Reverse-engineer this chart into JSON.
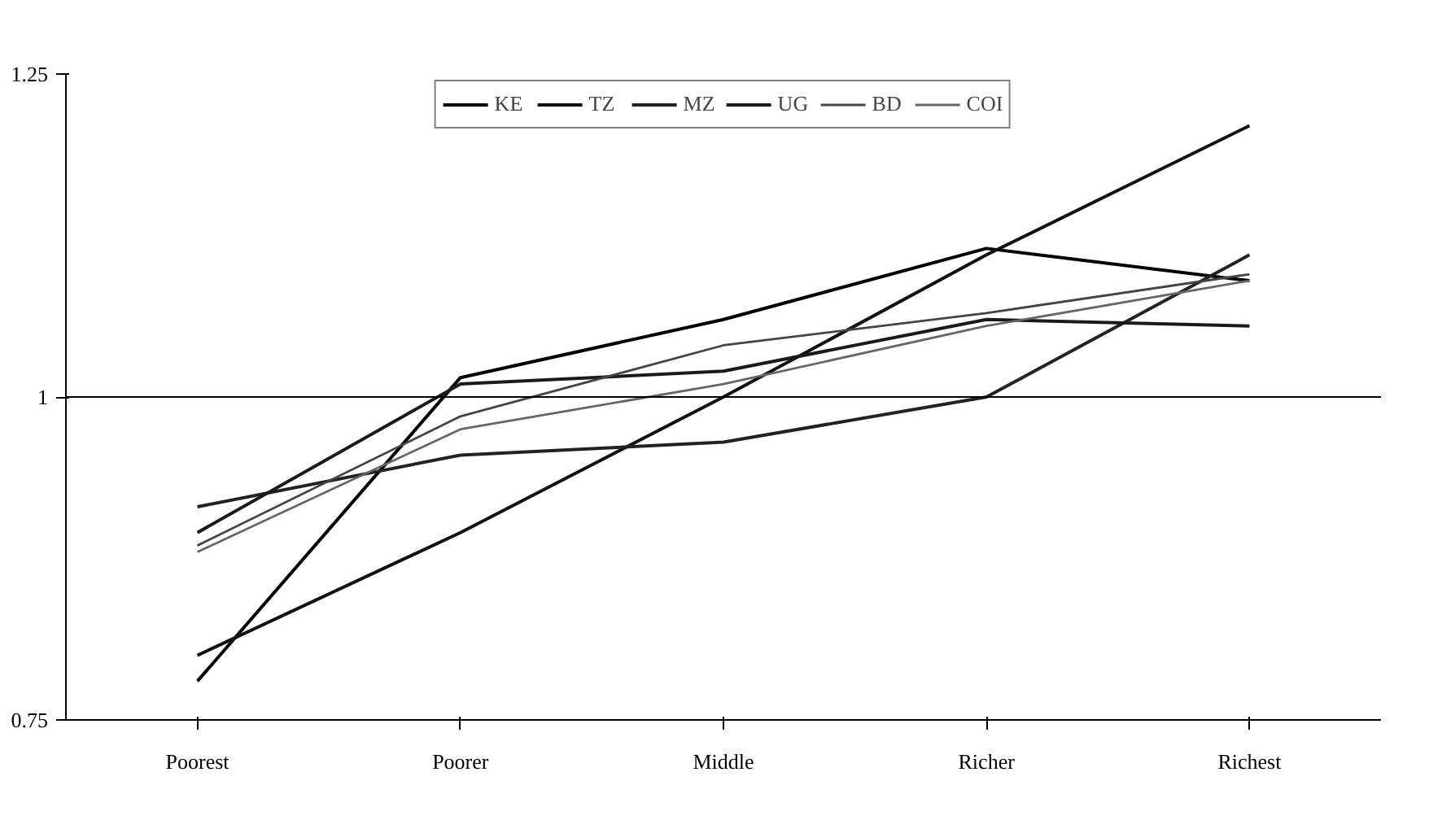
{
  "chart_data": {
    "type": "line",
    "categories": [
      "Poorest",
      "Poorer",
      "Middle",
      "Richer",
      "Richest"
    ],
    "series": [
      {
        "name": "KE",
        "color": "#000000",
        "values": [
          0.78,
          1.015,
          1.06,
          1.115,
          1.09
        ]
      },
      {
        "name": "TZ",
        "color": "#111111",
        "values": [
          0.8,
          0.895,
          1.0,
          1.11,
          1.21
        ]
      },
      {
        "name": "MZ",
        "color": "#222222",
        "values": [
          0.915,
          0.955,
          0.965,
          1.0,
          1.11
        ]
      },
      {
        "name": "UG",
        "color": "#1a1a1a",
        "values": [
          0.895,
          1.01,
          1.02,
          1.06,
          1.055
        ]
      },
      {
        "name": "BD",
        "color": "#444444",
        "values": [
          0.885,
          0.985,
          1.04,
          1.065,
          1.095
        ]
      },
      {
        "name": "COI",
        "color": "#666666",
        "values": [
          0.88,
          0.975,
          1.01,
          1.055,
          1.09
        ]
      }
    ],
    "ylim": [
      0.75,
      1.25
    ],
    "yticks": [
      0.75,
      1,
      1.25
    ],
    "grid": false,
    "legend": "top",
    "marker": "none",
    "line_style": "solid",
    "ref_lines": [
      {
        "axis": "y",
        "value": 1,
        "color": "#000000"
      }
    ]
  }
}
